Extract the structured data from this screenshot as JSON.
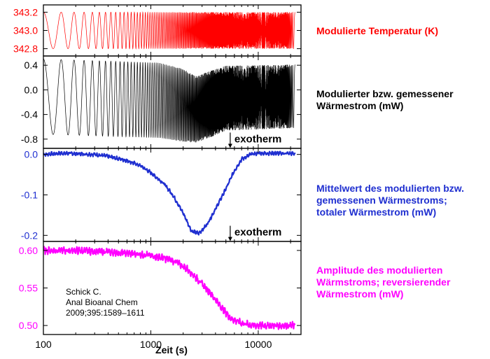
{
  "chart_data": {
    "type": "line",
    "x_scale": "log",
    "xlabel": "Zeit (s)",
    "xlim": [
      100,
      25000
    ],
    "x_ticks": [
      "100",
      "1000",
      "10000"
    ],
    "panels": [
      {
        "id": "temperature",
        "color": "#ff0000",
        "label_lines": [
          "Modulierte Temperatur (K)"
        ],
        "ylim": [
          342.72,
          343.28
        ],
        "y_ticks": [
          "343.2",
          "343.0",
          "342.8"
        ],
        "y_tick_values": [
          343.2,
          343.0,
          342.8
        ],
        "series": [
          {
            "kind": "oscillation",
            "center": 343.0,
            "amplitude": 0.2,
            "x_start": 100,
            "x_end": 22000
          }
        ]
      },
      {
        "id": "heat-flow",
        "color": "#000000",
        "label_lines": [
          "Modulierter bzw. gemessener",
          "Wärmestrom (mW)"
        ],
        "ylim": [
          -0.95,
          0.55
        ],
        "y_ticks": [
          "0.4",
          "0.0",
          "-0.4",
          "-0.8"
        ],
        "y_tick_values": [
          0.4,
          0.0,
          -0.4,
          -0.8
        ],
        "annotation": {
          "text": "exotherm",
          "x": 6000,
          "y": -0.83
        },
        "series": [
          {
            "kind": "oscillation",
            "upper_envelope": {
              "x": [
                100,
                1200,
                2000,
                2600,
                3500,
                5000,
                22000
              ],
              "y": [
                0.5,
                0.44,
                0.34,
                0.22,
                0.3,
                0.39,
                0.41
              ]
            },
            "lower_envelope": {
              "x": [
                100,
                1200,
                2000,
                2600,
                3500,
                5000,
                22000
              ],
              "y": [
                -0.72,
                -0.78,
                -0.84,
                -0.86,
                -0.78,
                -0.66,
                -0.62
              ]
            },
            "x_start": 100,
            "x_end": 22000
          }
        ]
      },
      {
        "id": "mean-heat-flow",
        "color": "#1f2fd0",
        "label_lines": [
          "Mittelwert des modulierten bzw.",
          "gemessenen Wärmestroms;",
          "totaler Wärmestrom (mW)"
        ],
        "ylim": [
          -0.215,
          0.015
        ],
        "y_ticks": [
          "0.0",
          "-0.1",
          "-0.2"
        ],
        "y_tick_values": [
          0.0,
          -0.1,
          -0.2
        ],
        "annotation": {
          "text": "exotherm",
          "x": 6000,
          "y": -0.197
        },
        "series": [
          {
            "x": [
              100,
              150,
              200,
              300,
              400,
              600,
              800,
              1000,
              1300,
              1600,
              2000,
              2400,
              2800,
              3300,
              4000,
              5000,
              6000,
              7000,
              8500,
              10000,
              14000,
              22000
            ],
            "y": [
              0.0,
              0.003,
              0.002,
              0.0,
              -0.005,
              -0.015,
              -0.028,
              -0.045,
              -0.07,
              -0.1,
              -0.145,
              -0.19,
              -0.195,
              -0.175,
              -0.135,
              -0.085,
              -0.04,
              -0.012,
              0.0,
              0.003,
              0.003,
              0.002
            ],
            "noise": 0.003
          }
        ]
      },
      {
        "id": "amplitude",
        "color": "#ff00ff",
        "label_lines": [
          "Amplitude des modulierten",
          "Wärmstroms; reversierender",
          "Wärmestrom (mW)"
        ],
        "ylim": [
          0.488,
          0.612
        ],
        "y_ticks": [
          "0.60",
          "0.55",
          "0.50"
        ],
        "y_tick_values": [
          0.6,
          0.55,
          0.5
        ],
        "citation_lines": [
          "Schick C.",
          "Anal Bioanal Chem",
          "2009;395:1589–1611"
        ],
        "series": [
          {
            "x": [
              100,
              200,
              400,
              800,
              1000,
              1300,
              1700,
              2200,
              2800,
              3500,
              4500,
              5500,
              7000,
              9000,
              12000,
              22000
            ],
            "y": [
              0.6,
              0.6,
              0.598,
              0.595,
              0.593,
              0.59,
              0.585,
              0.575,
              0.56,
              0.545,
              0.525,
              0.51,
              0.503,
              0.5,
              0.5,
              0.5
            ],
            "noise": 0.003
          }
        ]
      }
    ]
  }
}
